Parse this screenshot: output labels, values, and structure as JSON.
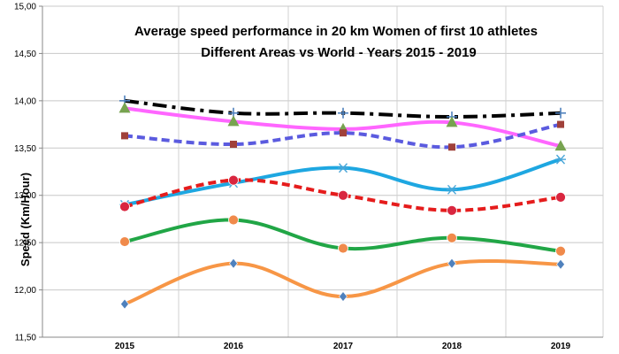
{
  "chart_data": {
    "type": "line",
    "title_lines": [
      "Average speed performance in 20 km Women of first 10 athletes",
      "Different Areas vs World - Years 2015 - 2019"
    ],
    "xlabel": "",
    "ylabel": "Speed (Km/Hour)",
    "categories": [
      "2015",
      "2016",
      "2017",
      "2018",
      "2019"
    ],
    "yticks": [
      "11,50",
      "12,00",
      "12,50",
      "13,00",
      "13,50",
      "14,00",
      "14,50",
      "15,00"
    ],
    "ylim": [
      11.5,
      15.0
    ],
    "grid": "horizontal and vertical",
    "legend": "none",
    "series": [
      {
        "values": [
          14.0,
          13.87,
          13.87,
          13.83,
          13.87
        ],
        "color": "#000000",
        "dash": "dash-dot",
        "marker": "plus",
        "marker_color": "#4f81bd"
      },
      {
        "values": [
          13.92,
          13.78,
          13.7,
          13.77,
          13.52
        ],
        "color": "#ff66ff",
        "dash": "solid",
        "marker": "triangle",
        "marker_color": "#77a350"
      },
      {
        "values": [
          13.63,
          13.54,
          13.66,
          13.51,
          13.75
        ],
        "color": "#5b5bdf",
        "dash": "dash",
        "marker": "square",
        "marker_color": "#a0403a"
      },
      {
        "values": [
          12.9,
          13.13,
          13.29,
          13.06,
          13.38
        ],
        "color": "#1ea7e1",
        "dash": "solid",
        "marker": "asterisk",
        "marker_color": "#4aa6d8"
      },
      {
        "values": [
          12.88,
          13.16,
          13.0,
          12.84,
          12.98
        ],
        "color": "#e51c1c",
        "dash": "dash",
        "marker": "circle",
        "marker_color": "#d9263f"
      },
      {
        "values": [
          12.51,
          12.74,
          12.44,
          12.55,
          12.41
        ],
        "color": "#21a646",
        "dash": "solid",
        "marker": "circle",
        "marker_color": "#f08a4b"
      },
      {
        "values": [
          11.85,
          12.28,
          11.93,
          12.28,
          12.27
        ],
        "color": "#f79646",
        "dash": "solid",
        "marker": "diamond",
        "marker_color": "#4f81bd"
      }
    ]
  }
}
